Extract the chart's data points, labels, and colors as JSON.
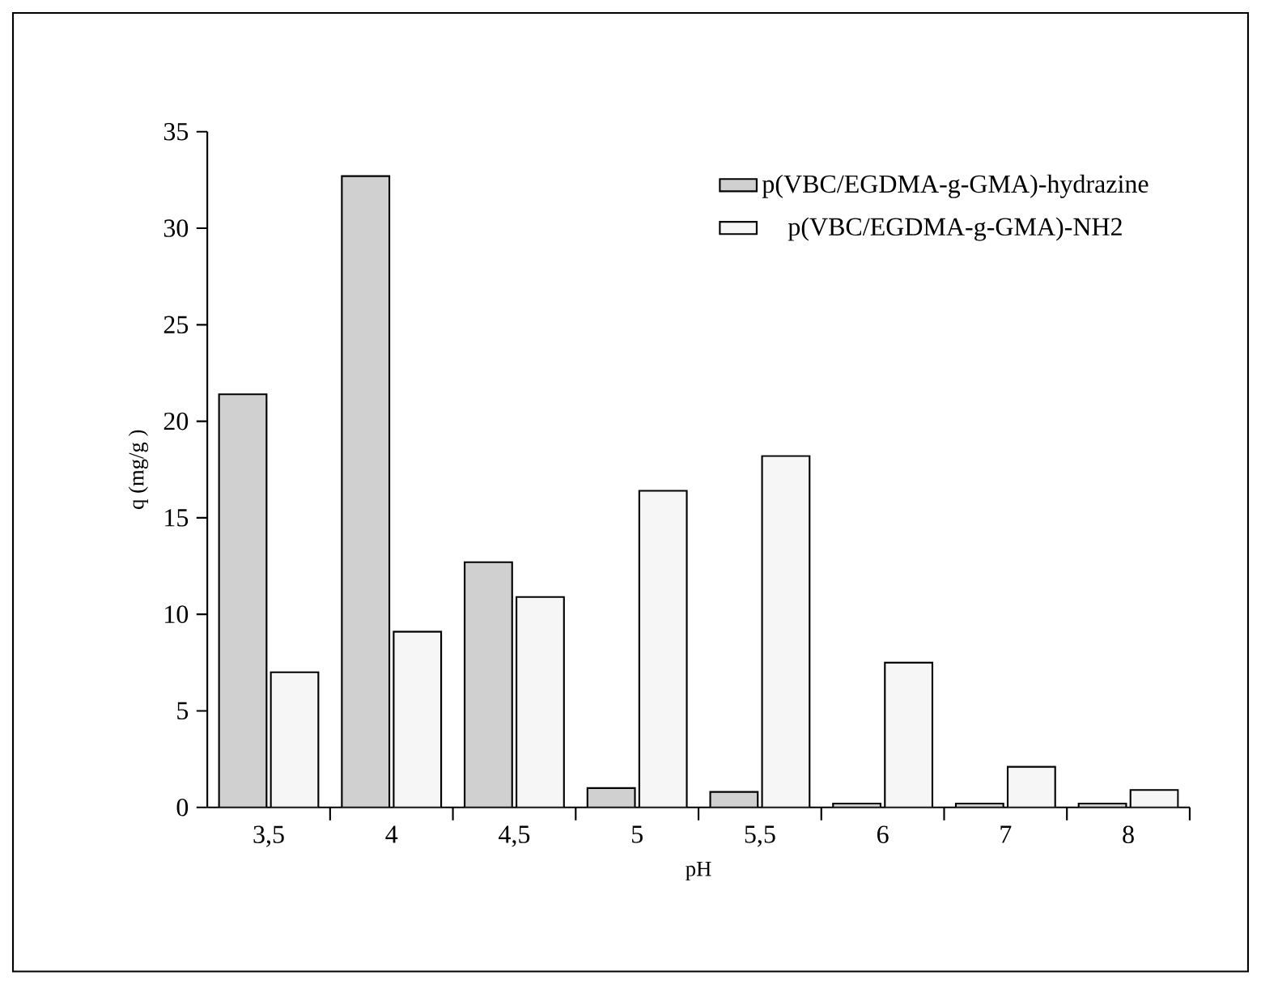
{
  "chart_data": {
    "type": "bar",
    "xlabel": "pH",
    "ylabel": "q (mg/g )",
    "categories": [
      "3,5",
      "4",
      "4,5",
      "5",
      "5,5",
      "6",
      "7",
      "8"
    ],
    "series": [
      {
        "name": "p(VBC/EGDMA-g-GMA)-hydrazine",
        "color": "#d0d0d0",
        "values": [
          21.4,
          32.7,
          12.7,
          1.0,
          0.8,
          0.2,
          0.2,
          0.2
        ]
      },
      {
        "name": "p(VBC/EGDMA-g-GMA)-NH2",
        "color": "#f6f6f6",
        "values": [
          7.0,
          9.1,
          10.9,
          16.4,
          18.2,
          7.5,
          2.1,
          0.9
        ]
      }
    ],
    "ylim": [
      0,
      35
    ],
    "yticks": [
      0,
      5,
      10,
      15,
      20,
      25,
      30,
      35
    ],
    "legend": "top right"
  }
}
